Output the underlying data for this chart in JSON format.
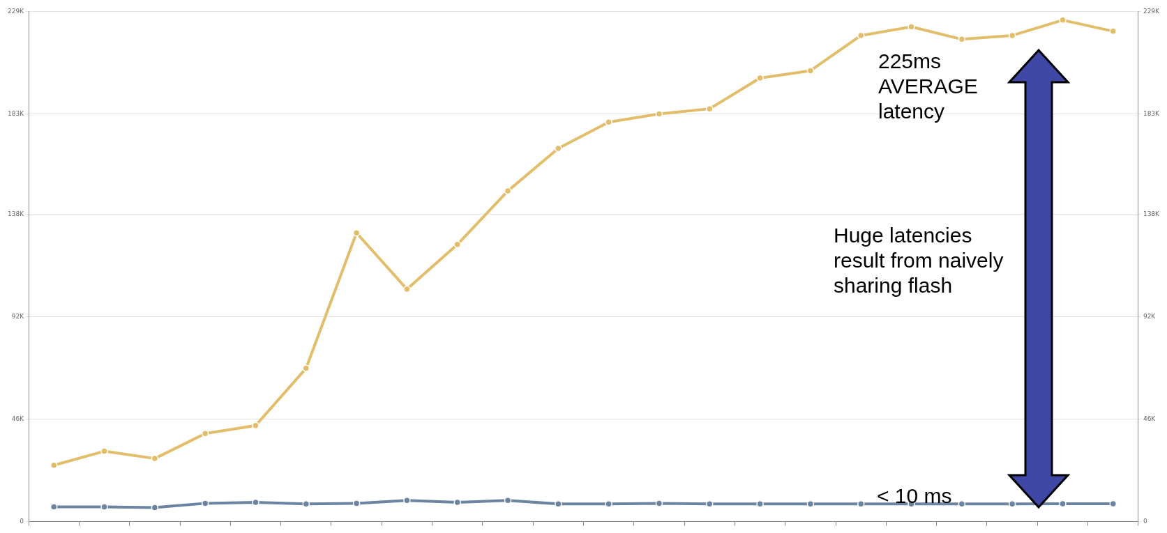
{
  "chart_data": {
    "type": "line",
    "categories": [
      null,
      null,
      null,
      null,
      null,
      null,
      null,
      null,
      null,
      null,
      null,
      null,
      null,
      null,
      null,
      null,
      null,
      null,
      null,
      null,
      null,
      null
    ],
    "series": [
      {
        "color": "#e2bd6a",
        "values": [
          25300,
          31600,
          28300,
          39500,
          43100,
          68800,
          129600,
          104300,
          124400,
          148400,
          167500,
          179300,
          183000,
          185300,
          199100,
          202400,
          218200,
          222100,
          216500,
          218200,
          225100,
          220100
        ]
      },
      {
        "color": "#6a84a2",
        "values": [
          6600,
          6600,
          6300,
          8200,
          8600,
          7900,
          8200,
          9500,
          8600,
          9500,
          7900,
          7900,
          8200,
          7900,
          7900,
          7900,
          7900,
          7900,
          7900,
          7900,
          8000,
          8000
        ]
      }
    ],
    "ylim": [
      0,
      229000
    ],
    "yticks": [
      0,
      {
        "value": 46000,
        "label": "46K"
      },
      {
        "value": 92000,
        "label": "92K"
      },
      {
        "value": 138000,
        "label": "138K"
      },
      {
        "value": 183000,
        "label": "183K"
      },
      {
        "value": 229000,
        "label": "229K"
      }
    ],
    "y2lim": [
      0,
      229000
    ],
    "y2ticks": [
      0,
      {
        "value": 46000,
        "label": "46K"
      },
      {
        "value": 92000,
        "label": "92K"
      },
      {
        "value": 138000,
        "label": "138K"
      },
      {
        "value": 183000,
        "label": "183K"
      },
      {
        "value": 229000,
        "label": "229K"
      }
    ],
    "tick_labels": "y",
    "grid": "y",
    "marker": "circle",
    "line_style": "solid",
    "annotations": [
      "225ms AVERAGE latency",
      "Huge latencies result from naively sharing flash",
      "< 10 ms"
    ]
  }
}
